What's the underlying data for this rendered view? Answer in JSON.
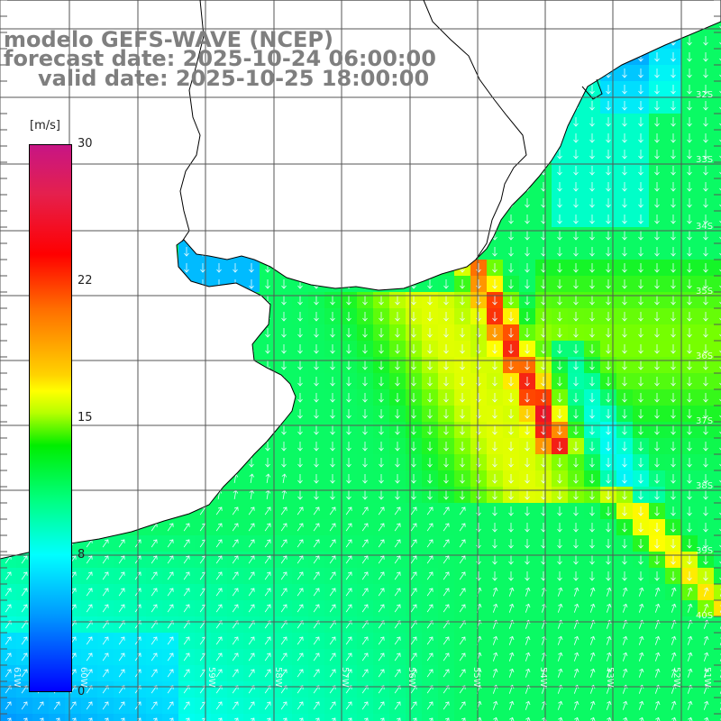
{
  "title": {
    "line1": "modelo GEFS-WAVE (NCEP)",
    "line2": "forecast date: 2025-10-24 06:00:00",
    "line3": "valid date: 2025-10-25 18:00:00"
  },
  "colorbar": {
    "unit": "[m/s]",
    "ticks": [
      "30",
      "22",
      "15",
      "8",
      "0"
    ],
    "tick_values": [
      30,
      22,
      15,
      8,
      0
    ],
    "min": 0,
    "max": 30
  },
  "map": {
    "variable": "wind speed with direction arrows",
    "region": "Rio de la Plata estuary and adjacent South Atlantic",
    "lon_range_deg_w": [
      61,
      51
    ],
    "lat_range_deg_s": [
      32,
      40.5
    ],
    "grid_lines": true,
    "land_color": "#ffffff",
    "lat_labels": [
      "32S",
      "33S",
      "34S",
      "35S",
      "36S",
      "37S",
      "38S",
      "39S",
      "40S"
    ],
    "lon_labels": [
      "61W",
      "60W",
      "59W",
      "58W",
      "57W",
      "56W",
      "55W",
      "54W",
      "53W",
      "52W",
      "51W"
    ],
    "arrow_color": "#e8ffff",
    "dominant_wind_direction": "from north (arrows pointing south) over the estuary and shelf; from southwest in the south",
    "max_speed_zone": "red band ~22-24 m/s along 53.5W from 35S to 37.5S"
  }
}
